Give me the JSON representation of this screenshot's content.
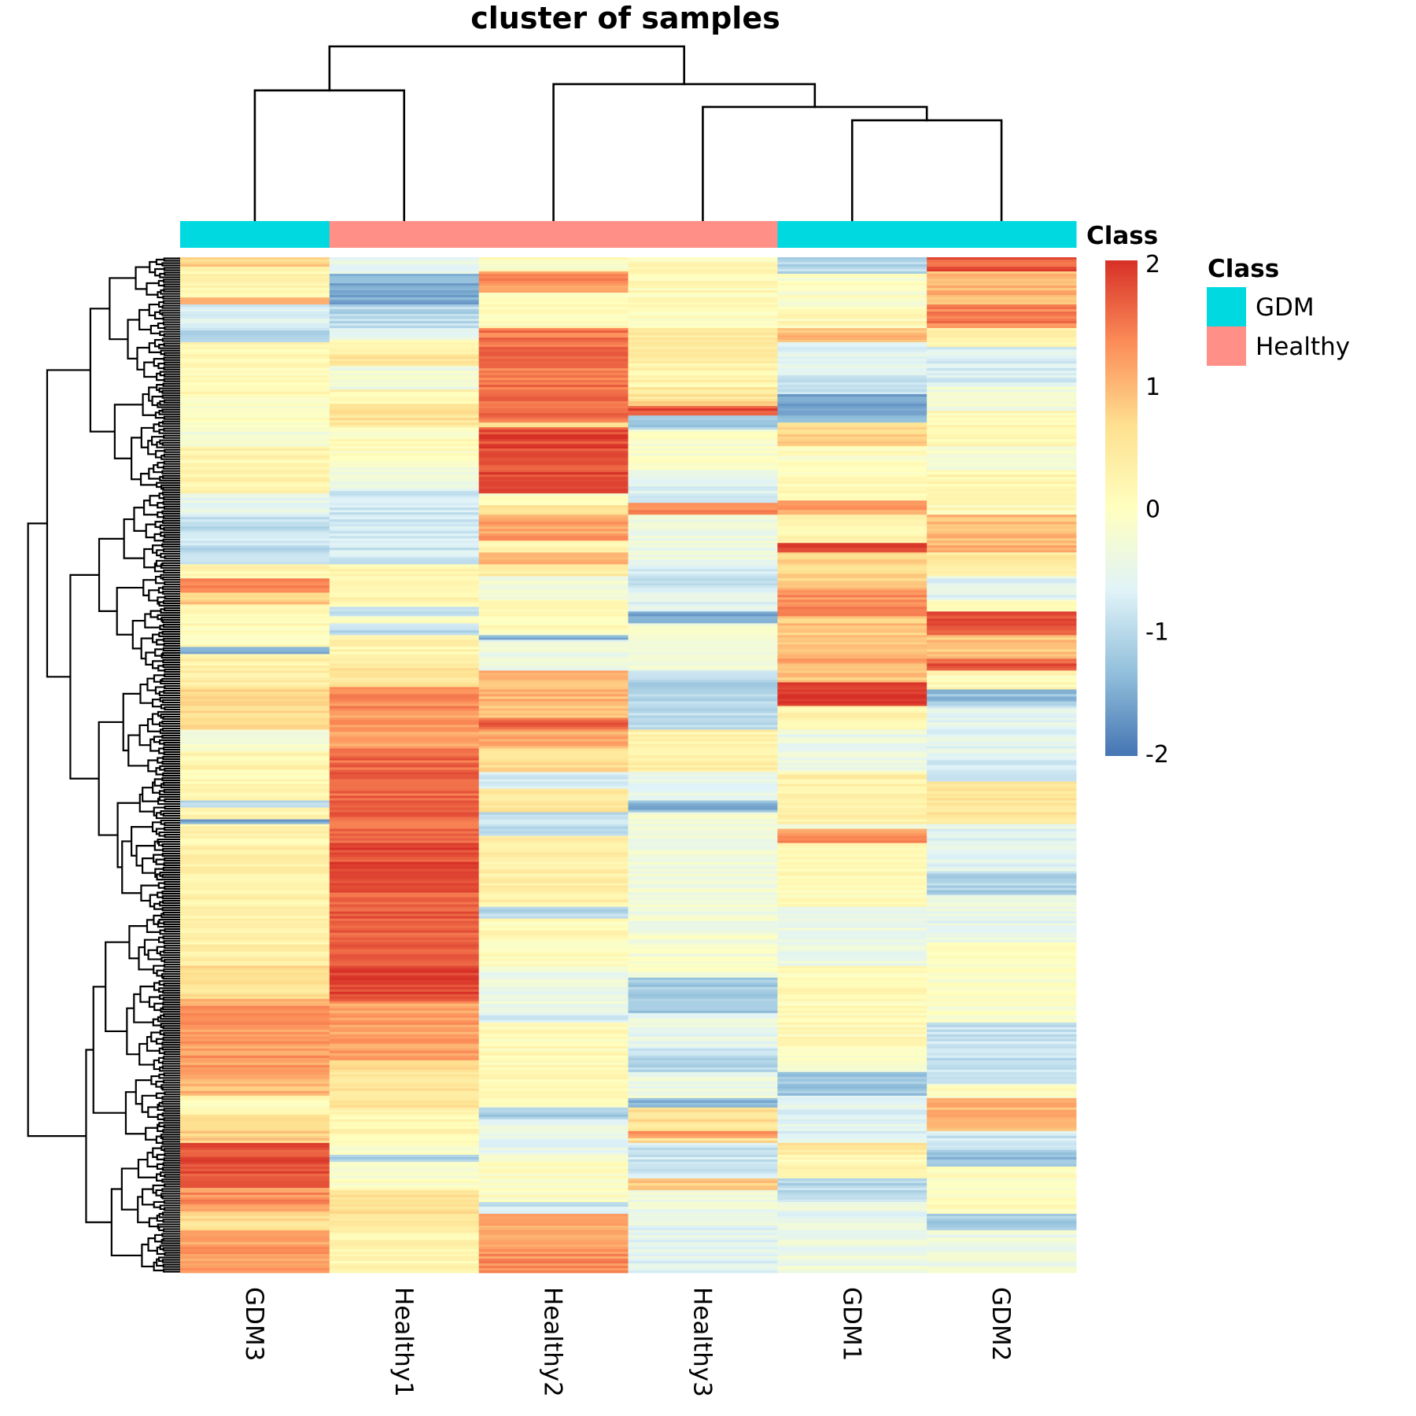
{
  "chart_data": {
    "type": "heatmap",
    "title": "cluster of samples",
    "xlabel": "",
    "ylabel": "",
    "samples": [
      "GDM3",
      "Healthy1",
      "Healthy2",
      "Healthy3",
      "GDM1",
      "GDM2"
    ],
    "sample_class": [
      "GDM",
      "Healthy",
      "Healthy",
      "Healthy",
      "GDM",
      "GDM"
    ],
    "annotation": {
      "name": "Class",
      "levels": [
        {
          "label": "GDM",
          "color": "#00D9E0"
        },
        {
          "label": "Healthy",
          "color": "#FF8F87"
        }
      ]
    },
    "colorbar": {
      "range": [
        -2,
        2
      ],
      "ticks": [
        "2",
        "1",
        "0",
        "-1",
        "-2"
      ],
      "tick_values": [
        2,
        1,
        0,
        -1,
        -2
      ],
      "palette": [
        "#4575B4",
        "#91BFDB",
        "#E0F3F8",
        "#FFFFBF",
        "#FEE090",
        "#FC8D59",
        "#D73027"
      ]
    },
    "column_dendrogram": {
      "merges": [
        {
          "left": "GDM1",
          "right": "GDM2",
          "height": 0.575
        },
        {
          "left": "Healthy3",
          "right": "GDM1+GDM2",
          "height": 0.652
        },
        {
          "left": "GDM3",
          "right": "Healthy1",
          "height": 0.747
        },
        {
          "left": "Healthy2",
          "right": "Healthy3+GDM1+GDM2",
          "height": 0.783
        },
        {
          "left": "GDM3+Healthy1",
          "right": "Healthy2+Healthy3+GDM1+GDM2",
          "height": 1.0
        }
      ]
    },
    "row_count": 430,
    "row_dendrogram": {
      "leaves": 430,
      "clustered": true
    },
    "value_segments_note": "row index ranges [start, end) with approximate z-score per sample",
    "value_segments": {
      "GDM3": [
        [
          0,
          4,
          0.7
        ],
        [
          4,
          17,
          0.2
        ],
        [
          17,
          20,
          0.9
        ],
        [
          20,
          30,
          -0.7
        ],
        [
          30,
          36,
          -1.0
        ],
        [
          36,
          60,
          0.1
        ],
        [
          60,
          70,
          0.0
        ],
        [
          70,
          80,
          -0.2
        ],
        [
          80,
          100,
          0.2
        ],
        [
          100,
          109,
          -0.5
        ],
        [
          109,
          130,
          -0.9
        ],
        [
          130,
          136,
          0.2
        ],
        [
          136,
          142,
          1.4
        ],
        [
          142,
          147,
          0.8
        ],
        [
          147,
          165,
          0.1
        ],
        [
          165,
          168,
          -1.5
        ],
        [
          168,
          182,
          0.3
        ],
        [
          182,
          200,
          0.7
        ],
        [
          200,
          209,
          -0.3
        ],
        [
          209,
          218,
          0.2
        ],
        [
          218,
          230,
          0.1
        ],
        [
          230,
          233,
          -1.0
        ],
        [
          233,
          238,
          0.2
        ],
        [
          238,
          240,
          -1.5
        ],
        [
          240,
          250,
          0.2
        ],
        [
          250,
          300,
          0.3
        ],
        [
          300,
          314,
          0.6
        ],
        [
          314,
          345,
          1.2
        ],
        [
          345,
          355,
          1.0
        ],
        [
          355,
          363,
          0.1
        ],
        [
          363,
          375,
          0.8
        ],
        [
          375,
          394,
          1.8
        ],
        [
          394,
          404,
          1.3
        ],
        [
          404,
          412,
          0.6
        ],
        [
          412,
          430,
          1.2
        ]
      ],
      "Healthy1": [
        [
          0,
          7,
          -0.6
        ],
        [
          7,
          20,
          -1.5
        ],
        [
          20,
          30,
          -1.0
        ],
        [
          30,
          35,
          -0.5
        ],
        [
          35,
          41,
          0.1
        ],
        [
          41,
          46,
          0.6
        ],
        [
          46,
          56,
          -0.3
        ],
        [
          56,
          62,
          0.2
        ],
        [
          62,
          72,
          0.6
        ],
        [
          72,
          87,
          0.0
        ],
        [
          87,
          98,
          -0.3
        ],
        [
          98,
          130,
          -0.8
        ],
        [
          130,
          148,
          0.2
        ],
        [
          148,
          152,
          -1.0
        ],
        [
          152,
          155,
          0.1
        ],
        [
          155,
          160,
          -1.0
        ],
        [
          160,
          172,
          0.2
        ],
        [
          172,
          182,
          0.5
        ],
        [
          182,
          192,
          1.3
        ],
        [
          192,
          208,
          1.2
        ],
        [
          208,
          248,
          1.6
        ],
        [
          248,
          260,
          1.8
        ],
        [
          260,
          300,
          1.7
        ],
        [
          300,
          315,
          1.9
        ],
        [
          315,
          340,
          1.2
        ],
        [
          340,
          360,
          0.6
        ],
        [
          360,
          375,
          0.2
        ],
        [
          375,
          380,
          -0.1
        ],
        [
          380,
          383,
          -1.2
        ],
        [
          383,
          395,
          -0.1
        ],
        [
          395,
          410,
          0.6
        ],
        [
          410,
          430,
          0.2
        ]
      ],
      "Healthy2": [
        [
          0,
          6,
          0.0
        ],
        [
          6,
          15,
          1.3
        ],
        [
          15,
          30,
          0.1
        ],
        [
          30,
          67,
          1.5
        ],
        [
          67,
          70,
          1.5
        ],
        [
          70,
          72,
          0.6
        ],
        [
          72,
          100,
          1.8
        ],
        [
          100,
          105,
          0.0
        ],
        [
          105,
          109,
          0.5
        ],
        [
          109,
          120,
          1.2
        ],
        [
          120,
          125,
          0.2
        ],
        [
          125,
          130,
          1.0
        ],
        [
          130,
          135,
          0.4
        ],
        [
          135,
          145,
          -0.3
        ],
        [
          145,
          160,
          0.1
        ],
        [
          160,
          162,
          -1.5
        ],
        [
          162,
          175,
          -0.4
        ],
        [
          175,
          195,
          1.0
        ],
        [
          195,
          200,
          1.6
        ],
        [
          200,
          208,
          1.1
        ],
        [
          208,
          218,
          0.6
        ],
        [
          218,
          225,
          -0.8
        ],
        [
          225,
          235,
          0.5
        ],
        [
          235,
          245,
          -0.9
        ],
        [
          245,
          275,
          0.3
        ],
        [
          275,
          280,
          -1.0
        ],
        [
          280,
          300,
          0.1
        ],
        [
          300,
          320,
          -0.4
        ],
        [
          320,
          324,
          -0.7
        ],
        [
          324,
          360,
          0.1
        ],
        [
          360,
          365,
          -1.2
        ],
        [
          365,
          380,
          -0.5
        ],
        [
          380,
          400,
          0.0
        ],
        [
          400,
          405,
          -0.8
        ],
        [
          405,
          420,
          1.2
        ],
        [
          420,
          430,
          1.3
        ]
      ],
      "Healthy3": [
        [
          0,
          15,
          0.1
        ],
        [
          15,
          30,
          0.0
        ],
        [
          30,
          45,
          0.5
        ],
        [
          45,
          55,
          0.2
        ],
        [
          55,
          60,
          0.5
        ],
        [
          60,
          63,
          0.7
        ],
        [
          63,
          67,
          1.8
        ],
        [
          67,
          73,
          -1.2
        ],
        [
          73,
          90,
          -0.1
        ],
        [
          90,
          100,
          -0.6
        ],
        [
          100,
          104,
          -0.9
        ],
        [
          104,
          109,
          1.3
        ],
        [
          109,
          130,
          -0.4
        ],
        [
          130,
          140,
          -0.8
        ],
        [
          140,
          150,
          -0.6
        ],
        [
          150,
          155,
          -1.5
        ],
        [
          155,
          175,
          -0.3
        ],
        [
          175,
          200,
          -1.0
        ],
        [
          200,
          218,
          0.3
        ],
        [
          218,
          230,
          -0.5
        ],
        [
          230,
          235,
          -1.4
        ],
        [
          235,
          285,
          -0.3
        ],
        [
          285,
          305,
          -0.2
        ],
        [
          305,
          320,
          -1.2
        ],
        [
          320,
          335,
          -0.5
        ],
        [
          335,
          345,
          -1.0
        ],
        [
          345,
          356,
          -0.4
        ],
        [
          356,
          360,
          -1.4
        ],
        [
          360,
          370,
          0.6
        ],
        [
          370,
          373,
          1.3
        ],
        [
          373,
          375,
          0.6
        ],
        [
          375,
          390,
          -0.8
        ],
        [
          390,
          395,
          0.8
        ],
        [
          395,
          410,
          -0.4
        ],
        [
          410,
          430,
          -0.6
        ]
      ],
      "GDM1": [
        [
          0,
          7,
          -1.0
        ],
        [
          7,
          22,
          -0.1
        ],
        [
          22,
          30,
          0.1
        ],
        [
          30,
          36,
          1.0
        ],
        [
          36,
          50,
          -0.6
        ],
        [
          50,
          58,
          -0.8
        ],
        [
          58,
          70,
          -1.5
        ],
        [
          70,
          80,
          0.7
        ],
        [
          80,
          95,
          0.0
        ],
        [
          95,
          103,
          0.1
        ],
        [
          103,
          109,
          1.2
        ],
        [
          109,
          121,
          0.2
        ],
        [
          121,
          125,
          1.8
        ],
        [
          125,
          140,
          0.7
        ],
        [
          140,
          152,
          1.3
        ],
        [
          152,
          168,
          0.9
        ],
        [
          168,
          172,
          1.2
        ],
        [
          172,
          180,
          0.9
        ],
        [
          180,
          190,
          2.0
        ],
        [
          190,
          200,
          0.2
        ],
        [
          200,
          218,
          -0.4
        ],
        [
          218,
          240,
          0.3
        ],
        [
          240,
          242,
          -0.5
        ],
        [
          242,
          248,
          1.3
        ],
        [
          248,
          275,
          0.1
        ],
        [
          275,
          300,
          -0.4
        ],
        [
          300,
          335,
          0.1
        ],
        [
          335,
          345,
          -0.2
        ],
        [
          345,
          355,
          -1.2
        ],
        [
          355,
          375,
          -0.6
        ],
        [
          375,
          380,
          0.5
        ],
        [
          380,
          390,
          0.1
        ],
        [
          390,
          400,
          -1.0
        ],
        [
          400,
          410,
          -0.5
        ],
        [
          410,
          430,
          -0.4
        ]
      ],
      "GDM2": [
        [
          0,
          6,
          1.7
        ],
        [
          6,
          20,
          1.0
        ],
        [
          20,
          30,
          1.4
        ],
        [
          30,
          38,
          0.2
        ],
        [
          38,
          55,
          -0.7
        ],
        [
          55,
          65,
          -0.3
        ],
        [
          65,
          80,
          0.1
        ],
        [
          80,
          90,
          -0.2
        ],
        [
          90,
          100,
          0.2
        ],
        [
          100,
          109,
          0.1
        ],
        [
          109,
          125,
          1.0
        ],
        [
          125,
          135,
          0.4
        ],
        [
          135,
          145,
          -0.6
        ],
        [
          145,
          150,
          0.0
        ],
        [
          150,
          160,
          1.7
        ],
        [
          160,
          170,
          0.9
        ],
        [
          170,
          175,
          1.7
        ],
        [
          175,
          183,
          0.1
        ],
        [
          183,
          190,
          -1.3
        ],
        [
          190,
          210,
          -0.6
        ],
        [
          210,
          218,
          -0.7
        ],
        [
          218,
          222,
          -1.0
        ],
        [
          222,
          240,
          0.5
        ],
        [
          240,
          260,
          -0.6
        ],
        [
          260,
          270,
          -1.1
        ],
        [
          270,
          290,
          -0.5
        ],
        [
          290,
          324,
          -0.1
        ],
        [
          324,
          340,
          -0.9
        ],
        [
          340,
          350,
          -0.8
        ],
        [
          350,
          356,
          0.0
        ],
        [
          356,
          370,
          1.0
        ],
        [
          370,
          378,
          -0.8
        ],
        [
          378,
          385,
          -1.3
        ],
        [
          385,
          405,
          0.0
        ],
        [
          405,
          412,
          -1.2
        ],
        [
          412,
          430,
          -0.4
        ]
      ]
    }
  }
}
